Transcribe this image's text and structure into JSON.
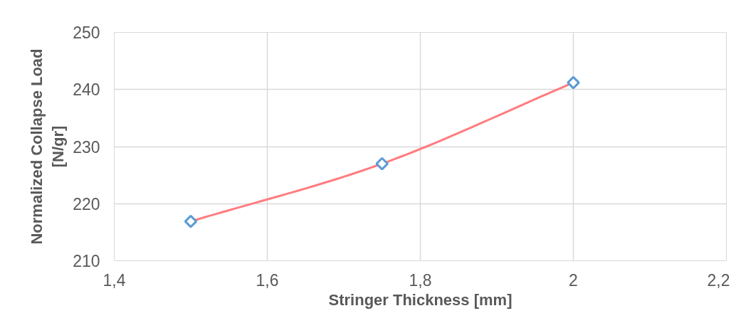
{
  "chart_data": {
    "type": "scatter",
    "xlabel": "Stringer Thickness [mm]",
    "ylabel": "Normalized Collapse Load\n[N/gr]",
    "x": [
      1.5,
      1.75,
      2.0
    ],
    "series": [
      {
        "type": "line",
        "color": "#ff7c80",
        "values": [
          216.9,
          227.0,
          241.2
        ]
      },
      {
        "color": "#5b9bd5",
        "marker": "diamond",
        "values": [
          216.9,
          227.0,
          241.2
        ]
      }
    ],
    "xlim": [
      1.4,
      2.2
    ],
    "xticks": [
      {
        "value": 1.4,
        "label": "1,4"
      },
      {
        "value": 1.6,
        "label": "1,6"
      },
      {
        "value": 1.8,
        "label": "1,8"
      },
      2,
      {
        "value": 2.2,
        "label": "2,2"
      }
    ],
    "ylim": [
      210,
      250
    ],
    "yticks": [
      210,
      220,
      230,
      240,
      250
    ],
    "grid": true
  }
}
